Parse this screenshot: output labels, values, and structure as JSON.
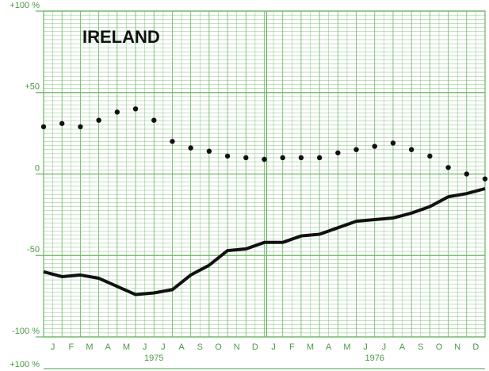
{
  "chart_data": {
    "type": "line",
    "title": "IRELAND",
    "x": [
      0,
      1,
      2,
      3,
      4,
      5,
      6,
      7,
      8,
      9,
      10,
      11,
      12,
      13,
      14,
      15,
      16,
      17,
      18,
      19,
      20,
      21,
      22,
      23,
      24
    ],
    "xlim": [
      0,
      24
    ],
    "xticks": [
      {
        "value": 0.5,
        "label": "J"
      },
      {
        "value": 1.5,
        "label": "F"
      },
      {
        "value": 2.5,
        "label": "M"
      },
      {
        "value": 3.5,
        "label": "A"
      },
      {
        "value": 4.5,
        "label": "M"
      },
      {
        "value": 5.5,
        "label": "J"
      },
      {
        "value": 6.5,
        "label": "J"
      },
      {
        "value": 7.5,
        "label": "A"
      },
      {
        "value": 8.5,
        "label": "S"
      },
      {
        "value": 9.5,
        "label": "O"
      },
      {
        "value": 10.5,
        "label": "N"
      },
      {
        "value": 11.5,
        "label": "D"
      },
      {
        "value": 12.5,
        "label": "J"
      },
      {
        "value": 13.5,
        "label": "F"
      },
      {
        "value": 14.5,
        "label": "M"
      },
      {
        "value": 15.5,
        "label": "A"
      },
      {
        "value": 16.5,
        "label": "M"
      },
      {
        "value": 17.5,
        "label": "J"
      },
      {
        "value": 18.5,
        "label": "J"
      },
      {
        "value": 19.5,
        "label": "A"
      },
      {
        "value": 20.5,
        "label": "S"
      },
      {
        "value": 21.5,
        "label": "O"
      },
      {
        "value": 22.5,
        "label": "N"
      },
      {
        "value": 23.5,
        "label": "D"
      }
    ],
    "year_labels": [
      {
        "value": 6,
        "label": "1975"
      },
      {
        "value": 18,
        "label": "1976"
      }
    ],
    "ylim": [
      -100,
      100
    ],
    "yticks": [
      {
        "value": 100,
        "label": "+100 %"
      },
      {
        "value": 50,
        "label": "+50"
      },
      0,
      -50,
      {
        "value": -100,
        "label": "-100 %"
      }
    ],
    "next_chart_label": "+100 %",
    "grid": true,
    "grid_color": "#6bb463",
    "series": [
      {
        "style": "dots",
        "color": "#111111",
        "values": [
          29,
          31,
          29,
          33,
          38,
          40,
          33,
          20,
          16,
          14,
          11,
          10,
          9,
          10,
          10,
          10,
          13,
          15,
          17,
          19,
          15,
          11,
          4,
          0,
          -3
        ]
      },
      {
        "style": "line",
        "color": "#111111",
        "values": [
          -60,
          -63,
          -62,
          -64,
          -69,
          -74,
          -73,
          -71,
          -62,
          -56,
          -47,
          -46,
          -42,
          -42,
          -38,
          -37,
          -33,
          -29,
          -28,
          -27,
          -24,
          -20,
          -14,
          -12,
          -9
        ]
      }
    ]
  }
}
